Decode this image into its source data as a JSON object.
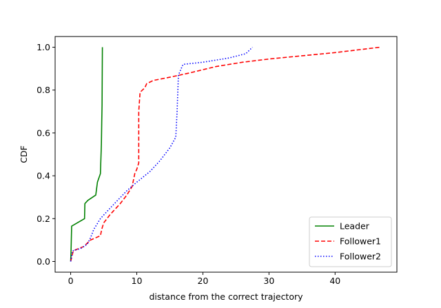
{
  "chart_data": {
    "type": "line",
    "title": "",
    "xlabel": "distance from the correct trajectory",
    "ylabel": "CDF",
    "xlim": [
      -2.35,
      49.35
    ],
    "ylim": [
      -0.05,
      1.05
    ],
    "x_ticks": [
      0,
      10,
      20,
      30,
      40
    ],
    "y_ticks": [
      0.0,
      0.2,
      0.4,
      0.6,
      0.8,
      1.0
    ],
    "x_tick_labels": [
      "0",
      "10",
      "20",
      "30",
      "40"
    ],
    "y_tick_labels": [
      "0.0",
      "0.2",
      "0.4",
      "0.6",
      "0.8",
      "1.0"
    ],
    "grid": false,
    "legend_position": "lower right",
    "series": [
      {
        "name": "Leader",
        "color": "#008000",
        "style": "solid",
        "points": [
          [
            0.0,
            0.0
          ],
          [
            0.05,
            0.04
          ],
          [
            0.15,
            0.165
          ],
          [
            1.0,
            0.18
          ],
          [
            2.1,
            0.2
          ],
          [
            2.15,
            0.27
          ],
          [
            2.6,
            0.285
          ],
          [
            3.8,
            0.31
          ],
          [
            4.05,
            0.37
          ],
          [
            4.5,
            0.41
          ],
          [
            4.65,
            0.55
          ],
          [
            4.7,
            0.65
          ],
          [
            4.75,
            0.73
          ],
          [
            4.8,
            1.0
          ]
        ]
      },
      {
        "name": "Follower1",
        "color": "#ff0000",
        "style": "dashed",
        "points": [
          [
            0.0,
            0.0
          ],
          [
            0.4,
            0.05
          ],
          [
            2.0,
            0.07
          ],
          [
            3.0,
            0.1
          ],
          [
            4.5,
            0.12
          ],
          [
            4.7,
            0.15
          ],
          [
            5.0,
            0.18
          ],
          [
            6.0,
            0.22
          ],
          [
            7.5,
            0.27
          ],
          [
            8.5,
            0.31
          ],
          [
            9.3,
            0.35
          ],
          [
            9.5,
            0.38
          ],
          [
            9.7,
            0.41
          ],
          [
            10.0,
            0.43
          ],
          [
            10.3,
            0.46
          ],
          [
            10.3,
            0.7
          ],
          [
            10.5,
            0.79
          ],
          [
            11.2,
            0.81
          ],
          [
            11.5,
            0.83
          ],
          [
            12.5,
            0.845
          ],
          [
            15.0,
            0.86
          ],
          [
            18.0,
            0.88
          ],
          [
            22.0,
            0.91
          ],
          [
            26.0,
            0.93
          ],
          [
            30.0,
            0.945
          ],
          [
            35.0,
            0.96
          ],
          [
            40.0,
            0.975
          ],
          [
            46.8,
            1.0
          ]
        ]
      },
      {
        "name": "Follower2",
        "color": "#0000ff",
        "style": "dotted",
        "points": [
          [
            0.0,
            0.0
          ],
          [
            0.3,
            0.05
          ],
          [
            1.5,
            0.06
          ],
          [
            2.5,
            0.08
          ],
          [
            3.0,
            0.11
          ],
          [
            3.5,
            0.15
          ],
          [
            4.5,
            0.2
          ],
          [
            6.0,
            0.25
          ],
          [
            8.5,
            0.33
          ],
          [
            10.0,
            0.37
          ],
          [
            12.0,
            0.42
          ],
          [
            13.5,
            0.47
          ],
          [
            15.0,
            0.53
          ],
          [
            15.9,
            0.58
          ],
          [
            16.1,
            0.7
          ],
          [
            16.3,
            0.87
          ],
          [
            17.0,
            0.92
          ],
          [
            20.0,
            0.93
          ],
          [
            24.0,
            0.95
          ],
          [
            26.5,
            0.97
          ],
          [
            27.5,
            1.0
          ]
        ]
      }
    ]
  }
}
